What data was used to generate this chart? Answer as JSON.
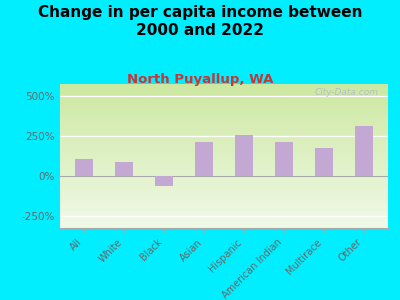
{
  "title": "Change in per capita income between\n2000 and 2022",
  "subtitle": "North Puyallup, WA",
  "categories": [
    "All",
    "White",
    "Black",
    "Asian",
    "Hispanic",
    "American Indian",
    "Multirace",
    "Other"
  ],
  "values": [
    105,
    90,
    -65,
    215,
    255,
    210,
    175,
    315
  ],
  "bar_color": "#c4a8d4",
  "background_fig": "#00eeff",
  "title_fontsize": 11,
  "subtitle_fontsize": 9.5,
  "subtitle_color": "#cc3333",
  "tick_color": "#666666",
  "watermark": "City-Data.com",
  "ylim": [
    -325,
    575
  ],
  "yticks": [
    -250,
    0,
    250,
    500
  ],
  "ytick_labels": [
    "-250%",
    "0%",
    "250%",
    "500%"
  ],
  "grad_top": "#cce8a0",
  "grad_bottom": "#f0f8e8"
}
